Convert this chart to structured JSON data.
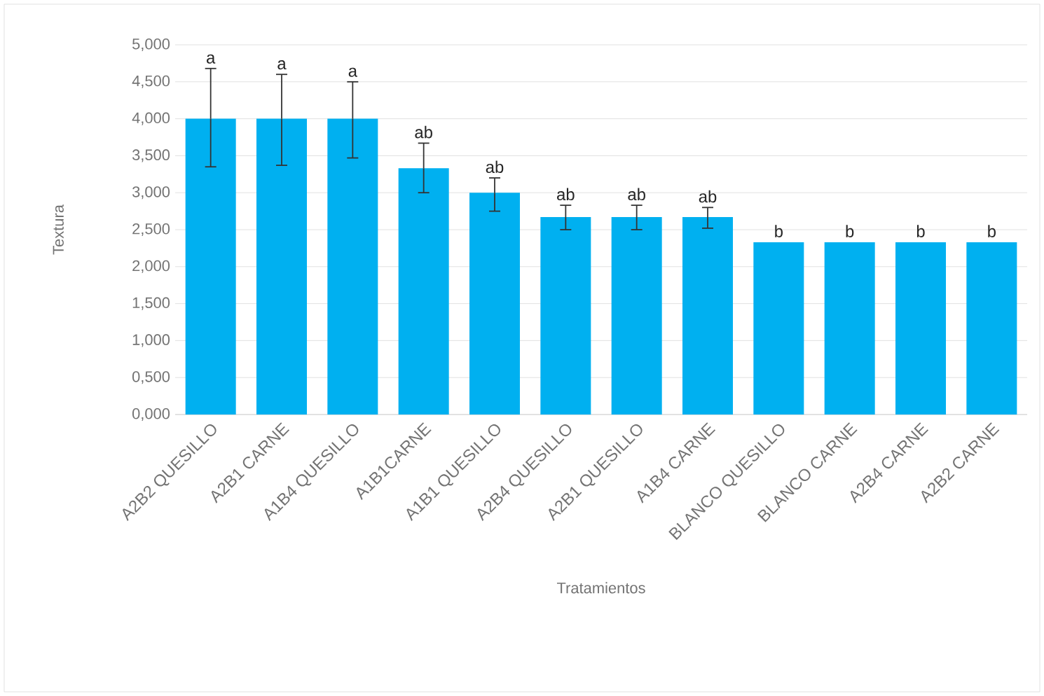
{
  "chart_data": {
    "type": "bar",
    "xlabel": "Tratamientos",
    "ylabel": "Textura",
    "categories": [
      "A2B2 QUESILLO",
      "A2B1 CARNE",
      "A1B4 QUESILLO",
      "A1B1CARNE",
      "A1B1 QUESILLO",
      "A2B4 QUESILLO",
      "A2B1 QUESILLO",
      "A1B4 CARNE",
      "BLANCO QUESILLO",
      "BLANCO CARNE",
      "A2B4 CARNE",
      "A2B2 CARNE"
    ],
    "values": [
      4.0,
      4.0,
      4.0,
      3.33,
      3.0,
      2.67,
      2.67,
      2.67,
      2.33,
      2.33,
      2.33,
      2.33
    ],
    "errors": [
      [
        3.35,
        4.68
      ],
      [
        3.37,
        4.6
      ],
      [
        3.47,
        4.5
      ],
      [
        3.0,
        3.67
      ],
      [
        2.75,
        3.2
      ],
      [
        2.5,
        2.83
      ],
      [
        2.5,
        2.83
      ],
      [
        2.52,
        2.8
      ],
      null,
      null,
      null,
      null
    ],
    "color": "#00b0f0",
    "ylim": [
      0,
      5
    ],
    "yticks": [
      {
        "value": 0,
        "label": "0,000"
      },
      {
        "value": 0.5,
        "label": "0,500"
      },
      {
        "value": 1,
        "label": "1,000"
      },
      {
        "value": 1.5,
        "label": "1,500"
      },
      {
        "value": 2,
        "label": "2,000"
      },
      {
        "value": 2.5,
        "label": "2,500"
      },
      {
        "value": 3,
        "label": "3,000"
      },
      {
        "value": 3.5,
        "label": "3,500"
      },
      {
        "value": 4,
        "label": "4,000"
      },
      {
        "value": 4.5,
        "label": "4,500"
      },
      {
        "value": 5,
        "label": "5,000"
      }
    ],
    "grid": "y",
    "annotations": [
      "a",
      "a",
      "a",
      "ab",
      "ab",
      "ab",
      "ab",
      "ab",
      "b",
      "b",
      "b",
      "b"
    ]
  }
}
